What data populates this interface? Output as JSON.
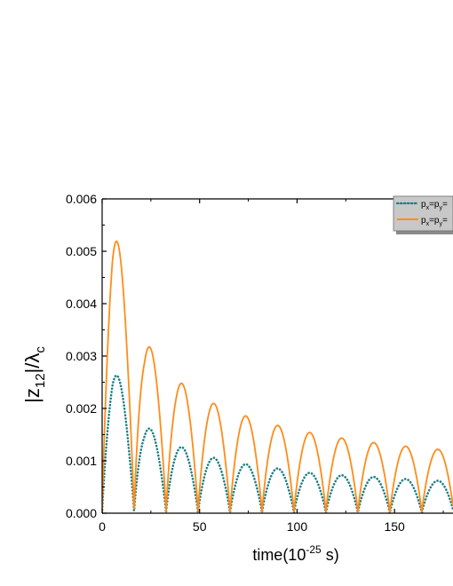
{
  "chart_data": {
    "type": "line",
    "xlabel": {
      "base": "time(10",
      "exponent": "-25",
      "unit": " s)"
    },
    "ylabel": {
      "num": "|z",
      "num_sub": "12",
      "mid": "|/λ",
      "den_sub": "c"
    },
    "xlim": [
      0,
      180
    ],
    "ylim": [
      0,
      0.006
    ],
    "x_ticks": [
      "0",
      "50",
      "100",
      "150"
    ],
    "x_tick_values": [
      0,
      50,
      100,
      150
    ],
    "y_ticks": [
      "0.000",
      "0.001",
      "0.002",
      "0.003",
      "0.004",
      "0.005",
      "0.006"
    ],
    "y_tick_values": [
      0,
      0.001,
      0.002,
      0.003,
      0.004,
      0.005,
      0.006
    ],
    "legend": {
      "placement": "top-right",
      "entries": [
        {
          "label": "p",
          "sub1": "x",
          "mid": "=p",
          "sub2": "y",
          "tail": "="
        },
        {
          "label": "p",
          "sub1": "x",
          "mid": "=p",
          "sub2": "y",
          "tail": "="
        }
      ]
    },
    "series": [
      {
        "style": "dotted",
        "color": "#1a7f86",
        "period": 16.4,
        "peaks": [
          {
            "x": 5.3,
            "y": 0.0028
          },
          {
            "x": 21.6,
            "y": 0.00168
          },
          {
            "x": 38.0,
            "y": 0.0013
          },
          {
            "x": 54.4,
            "y": 0.00108
          },
          {
            "x": 70.8,
            "y": 0.00095
          },
          {
            "x": 87.2,
            "y": 0.00087
          },
          {
            "x": 103.6,
            "y": 0.00078
          },
          {
            "x": 120.0,
            "y": 0.00073
          },
          {
            "x": 136.4,
            "y": 0.0007
          },
          {
            "x": 152.8,
            "y": 0.00066
          },
          {
            "x": 169.2,
            "y": 0.00062
          }
        ]
      },
      {
        "style": "solid",
        "color": "#ff8c1a",
        "period": 16.4,
        "peaks": [
          {
            "x": 5.3,
            "y": 0.00553
          },
          {
            "x": 21.6,
            "y": 0.0033
          },
          {
            "x": 38.0,
            "y": 0.00255
          },
          {
            "x": 54.4,
            "y": 0.00214
          },
          {
            "x": 70.8,
            "y": 0.00189
          },
          {
            "x": 87.2,
            "y": 0.0017
          },
          {
            "x": 103.6,
            "y": 0.00156
          },
          {
            "x": 120.0,
            "y": 0.00145
          },
          {
            "x": 136.4,
            "y": 0.00136
          },
          {
            "x": 152.8,
            "y": 0.00129
          },
          {
            "x": 169.2,
            "y": 0.00122
          }
        ]
      }
    ]
  }
}
